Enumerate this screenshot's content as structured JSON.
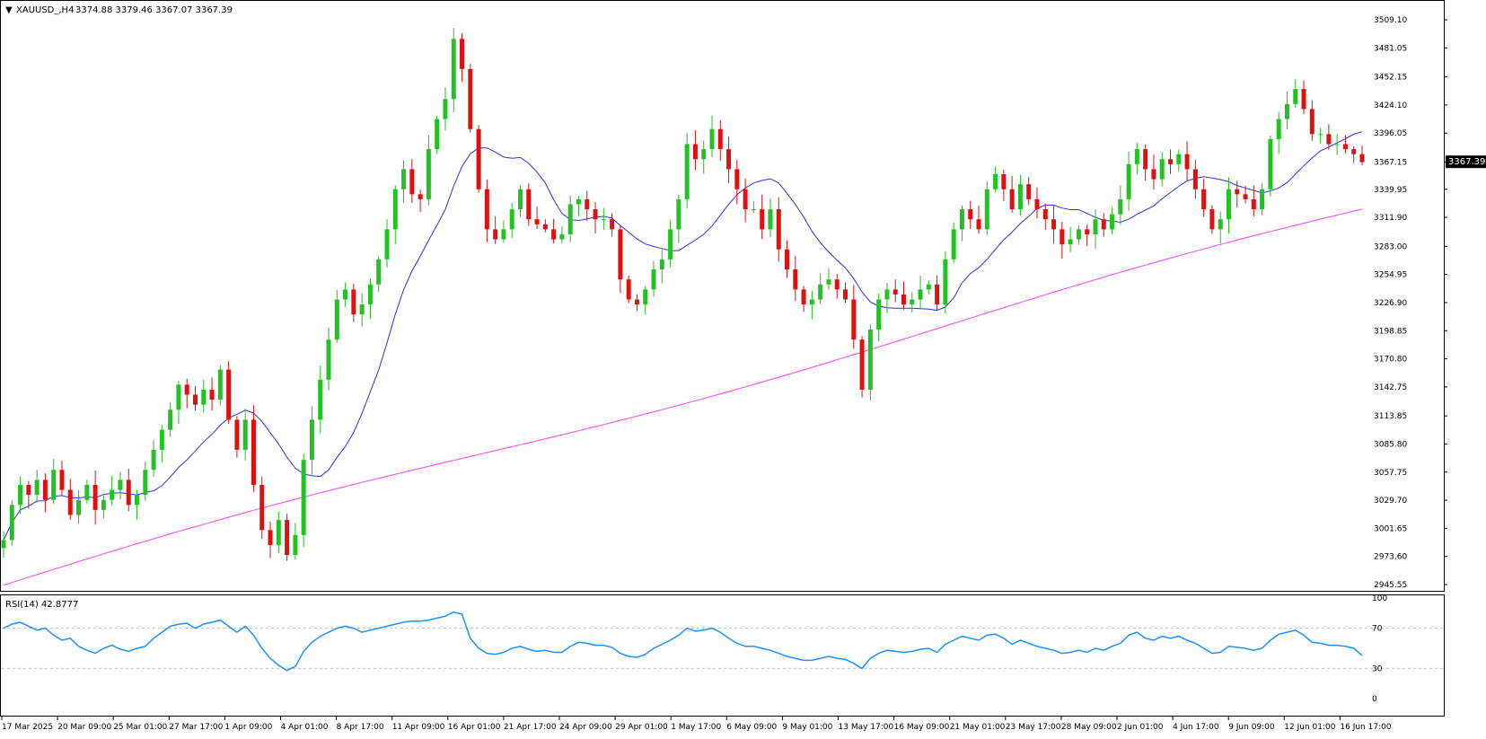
{
  "header": {
    "symbol": "XAUUSD_,H4",
    "ohlc": "3374.88 3379.46 3367.07 3367.39",
    "menu_marker": "▼"
  },
  "price_axis": {
    "ticks": [
      "3509.10",
      "3481.05",
      "3452.15",
      "3424.10",
      "3396.05",
      "3367.15",
      "3339.95",
      "3311.90",
      "3283.00",
      "3254.95",
      "3226.90",
      "3198.85",
      "3170.80",
      "3142.75",
      "3113.85",
      "3085.80",
      "3057.75",
      "3029.70",
      "3001.65",
      "2973.60",
      "2945.55"
    ],
    "current_price_label": "3367.39"
  },
  "rsi": {
    "label": "RSI(14) 42.8777",
    "levels_printed": [
      "100",
      "70",
      "30",
      "0"
    ]
  },
  "time_axis": {
    "labels": [
      "17 Mar 2025",
      "20 Mar 09:00",
      "25 Mar 01:00",
      "27 Mar 17:00",
      "1 Apr 09:00",
      "4 Apr 01:00",
      "8 Apr 17:00",
      "11 Apr 09:00",
      "16 Apr 01:00",
      "21 Apr 17:00",
      "24 Apr 09:00",
      "29 Apr 01:00",
      "1 May 17:00",
      "6 May 09:00",
      "9 May 01:00",
      "13 May 17:00",
      "16 May 09:00",
      "21 May 01:00",
      "23 May 17:00",
      "28 May 09:00",
      "2 Jun 01:00",
      "4 Jun 17:00",
      "9 Jun 09:00",
      "12 Jun 01:00",
      "16 Jun 17:00"
    ]
  },
  "colors": {
    "bull_candle": "#22c222",
    "bear_candle": "#e01010",
    "ma_fast": "#3030e0",
    "ma_slow": "#ff40ff",
    "rsi_line": "#1e90ff",
    "grid_dashed": "#c0c0c0",
    "axis": "#000000",
    "price_label_bg": "#000000",
    "price_label_text": "#ffffff"
  },
  "chart_data": [
    {
      "type": "candlestick",
      "symbol": "XAUUSD_",
      "timeframe": "H4",
      "ylim": [
        2945.55,
        3509.1
      ],
      "last_close": 3367.39,
      "closes": [
        2990,
        3025,
        3045,
        3035,
        3050,
        3030,
        3060,
        3040,
        3015,
        3030,
        3045,
        3020,
        3030,
        3040,
        3050,
        3025,
        3035,
        3060,
        3080,
        3100,
        3120,
        3145,
        3135,
        3125,
        3140,
        3130,
        3160,
        3110,
        3080,
        3110,
        3045,
        3000,
        2985,
        3010,
        2975,
        2995,
        3070,
        3110,
        3150,
        3190,
        3230,
        3240,
        3215,
        3225,
        3245,
        3270,
        3300,
        3340,
        3360,
        3335,
        3330,
        3380,
        3410,
        3430,
        3490,
        3460,
        3400,
        3340,
        3300,
        3290,
        3300,
        3320,
        3340,
        3310,
        3305,
        3300,
        3290,
        3295,
        3325,
        3330,
        3320,
        3310,
        3310,
        3300,
        3250,
        3230,
        3225,
        3240,
        3260,
        3270,
        3300,
        3330,
        3385,
        3370,
        3380,
        3400,
        3380,
        3360,
        3340,
        3320,
        3320,
        3300,
        3320,
        3280,
        3260,
        3240,
        3225,
        3230,
        3245,
        3250,
        3240,
        3230,
        3190,
        3140,
        3200,
        3230,
        3240,
        3235,
        3225,
        3230,
        3240,
        3245,
        3225,
        3270,
        3300,
        3320,
        3310,
        3300,
        3340,
        3355,
        3340,
        3320,
        3345,
        3330,
        3320,
        3310,
        3300,
        3285,
        3290,
        3300,
        3295,
        3310,
        3300,
        3315,
        3330,
        3365,
        3380,
        3360,
        3350,
        3370,
        3365,
        3375,
        3360,
        3340,
        3320,
        3300,
        3310,
        3340,
        3335,
        3330,
        3320,
        3340,
        3390,
        3410,
        3425,
        3440,
        3420,
        3395,
        3395,
        3385,
        3385,
        3380,
        3375,
        3367
      ]
    },
    {
      "type": "line",
      "name": "RSI(14)",
      "ylim": [
        0,
        100
      ],
      "levels": [
        70,
        30
      ],
      "last_value": 42.8777,
      "values": [
        70,
        74,
        76,
        72,
        68,
        70,
        63,
        58,
        60,
        52,
        48,
        45,
        50,
        53,
        49,
        47,
        50,
        52,
        60,
        66,
        72,
        74,
        75,
        70,
        74,
        76,
        78,
        72,
        66,
        72,
        63,
        50,
        40,
        33,
        28,
        32,
        47,
        56,
        62,
        66,
        70,
        72,
        70,
        66,
        68,
        70,
        72,
        74,
        76,
        77,
        77,
        78,
        80,
        82,
        86,
        84,
        60,
        50,
        45,
        44,
        46,
        50,
        52,
        49,
        47,
        48,
        46,
        46,
        52,
        56,
        55,
        53,
        53,
        51,
        45,
        42,
        41,
        44,
        50,
        54,
        58,
        63,
        70,
        67,
        68,
        70,
        66,
        60,
        55,
        52,
        52,
        50,
        48,
        45,
        42,
        40,
        38,
        38,
        40,
        42,
        40,
        39,
        35,
        30,
        40,
        45,
        48,
        47,
        46,
        47,
        49,
        50,
        46,
        54,
        58,
        62,
        60,
        58,
        63,
        64,
        60,
        54,
        58,
        55,
        52,
        50,
        48,
        45,
        46,
        48,
        46,
        50,
        48,
        52,
        55,
        63,
        66,
        60,
        58,
        62,
        60,
        62,
        58,
        55,
        50,
        45,
        46,
        52,
        51,
        50,
        48,
        50,
        58,
        64,
        66,
        68,
        63,
        56,
        55,
        53,
        53,
        52,
        50,
        42.8777
      ]
    }
  ]
}
